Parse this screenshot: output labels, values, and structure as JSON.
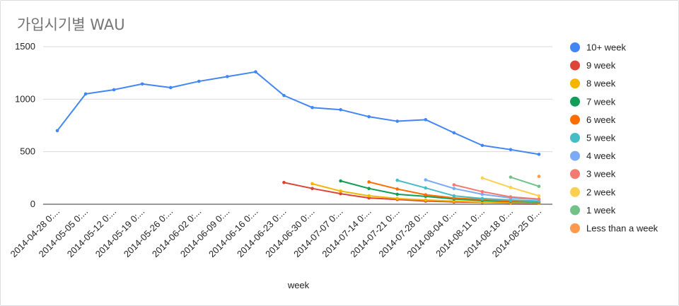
{
  "title": "가입시기별 WAU",
  "chart_data": {
    "type": "line",
    "title": "가입시기별 WAU",
    "xlabel": "week",
    "ylabel": "",
    "ylim": [
      0,
      1500
    ],
    "yticks": [
      0,
      500,
      1000,
      1500
    ],
    "grid": true,
    "legend_position": "right",
    "categories": [
      "2014-04-28 0:...",
      "2014-05-05 0:...",
      "2014-05-12 0:...",
      "2014-05-19 0:...",
      "2014-05-26 0:...",
      "2014-06-02 0:...",
      "2014-06-09 0:...",
      "2014-06-16 0:...",
      "2014-06-23 0:...",
      "2014-06-30 0:...",
      "2014-07-07 0:...",
      "2014-07-14 0:...",
      "2014-07-21 0:...",
      "2014-07-28 0:...",
      "2014-08-04 0:...",
      "2014-08-11 0:...",
      "2014-08-18 0:...",
      "2014-08-25 0:..."
    ],
    "series": [
      {
        "name": "10+ week",
        "color": "#4285f4",
        "values": [
          700,
          1050,
          1090,
          1145,
          1110,
          1170,
          1215,
          1260,
          1035,
          920,
          900,
          833,
          790,
          805,
          680,
          560,
          520,
          475
        ]
      },
      {
        "name": "9 week",
        "color": "#db4437",
        "values": [
          null,
          null,
          null,
          null,
          null,
          null,
          null,
          null,
          207,
          150,
          100,
          60,
          45,
          30,
          22,
          18,
          12,
          10
        ]
      },
      {
        "name": "8 week",
        "color": "#f4b400",
        "values": [
          null,
          null,
          null,
          null,
          null,
          null,
          null,
          null,
          null,
          195,
          125,
          80,
          55,
          40,
          30,
          20,
          15,
          12
        ]
      },
      {
        "name": "7 week",
        "color": "#0f9d58",
        "values": [
          null,
          null,
          null,
          null,
          null,
          null,
          null,
          null,
          null,
          null,
          222,
          150,
          95,
          75,
          50,
          35,
          25,
          20
        ]
      },
      {
        "name": "6 week",
        "color": "#ff6d00",
        "values": [
          null,
          null,
          null,
          null,
          null,
          null,
          null,
          null,
          null,
          null,
          null,
          212,
          145,
          90,
          60,
          45,
          30,
          25
        ]
      },
      {
        "name": "5 week",
        "color": "#46bdc6",
        "values": [
          null,
          null,
          null,
          null,
          null,
          null,
          null,
          null,
          null,
          null,
          null,
          null,
          228,
          155,
          80,
          55,
          40,
          30
        ]
      },
      {
        "name": "4 week",
        "color": "#7baaf7",
        "values": [
          null,
          null,
          null,
          null,
          null,
          null,
          null,
          null,
          null,
          null,
          null,
          null,
          null,
          232,
          150,
          95,
          60,
          45
        ]
      },
      {
        "name": "3 week",
        "color": "#f07b72",
        "values": [
          null,
          null,
          null,
          null,
          null,
          null,
          null,
          null,
          null,
          null,
          null,
          null,
          null,
          null,
          185,
          120,
          70,
          50
        ]
      },
      {
        "name": "2 week",
        "color": "#fcd04f",
        "values": [
          null,
          null,
          null,
          null,
          null,
          null,
          null,
          null,
          null,
          null,
          null,
          null,
          null,
          null,
          null,
          250,
          160,
          80
        ]
      },
      {
        "name": "1 week",
        "color": "#71c287",
        "values": [
          null,
          null,
          null,
          null,
          null,
          null,
          null,
          null,
          null,
          null,
          null,
          null,
          null,
          null,
          null,
          null,
          258,
          170
        ]
      },
      {
        "name": "Less than a week",
        "color": "#ff994d",
        "values": [
          null,
          null,
          null,
          null,
          null,
          null,
          null,
          null,
          null,
          null,
          null,
          null,
          null,
          null,
          null,
          null,
          null,
          265
        ]
      }
    ]
  }
}
